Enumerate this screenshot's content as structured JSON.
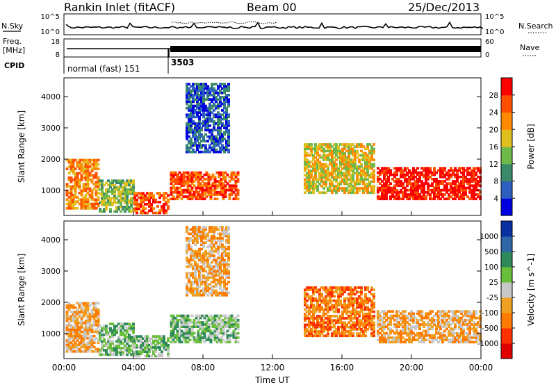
{
  "header": {
    "station": "Rankin Inlet (fitACF)",
    "beam": "Beam 00",
    "date": "25/Dec/2013"
  },
  "noise_panel": {
    "left_label": "N.Sky",
    "right_label": "N.Search",
    "left_ticks": [
      "10^5",
      "10^0"
    ],
    "right_ticks": [
      "10^5",
      "10^0"
    ]
  },
  "freq_panel": {
    "left_label_1": "Freq.",
    "left_label_2": "[MHz]",
    "right_label": "Nave",
    "left_ticks": [
      "18",
      "8"
    ],
    "right_ticks": [
      "60",
      "0"
    ]
  },
  "cpid": {
    "label": "CPID",
    "segments": [
      "normal (fast) 151",
      "3503"
    ]
  },
  "time_axis": {
    "label": "Time UT",
    "ticks": [
      "00:00",
      "04:00",
      "08:00",
      "12:00",
      "16:00",
      "20:00",
      "00:00"
    ]
  },
  "colors": {
    "power": [
      "#0000e0",
      "#2c5fbf",
      "#3a8a6a",
      "#6fb84a",
      "#e0c020",
      "#ff8a00",
      "#ff5000",
      "#ff0000"
    ],
    "velocity": [
      "#0a2fa0",
      "#2f66a8",
      "#2f8a5a",
      "#6abf3a",
      "#c8c8c8",
      "#f0a020",
      "#ff7a00",
      "#ff3000",
      "#e00000"
    ]
  },
  "chart_data": [
    {
      "type": "heatmap",
      "title": "",
      "xlabel": "",
      "ylabel": "Slant Range [km]",
      "xlim": [
        "00:00",
        "24:00"
      ],
      "ylim": [
        200,
        4600
      ],
      "y_ticks": [
        1000,
        2000,
        3000,
        4000
      ],
      "colorbar": {
        "label": "Power [dB]",
        "ticks": [
          "28",
          "24",
          "20",
          "16",
          "12",
          "8",
          "4"
        ],
        "range": [
          0,
          30
        ]
      },
      "regions": [
        {
          "t_start": 0.1,
          "t_end": 2.0,
          "r_low": 400,
          "r_high": 2000,
          "value": 22
        },
        {
          "t_start": 2.0,
          "t_end": 4.0,
          "r_low": 300,
          "r_high": 1300,
          "value": 14
        },
        {
          "t_start": 4.0,
          "t_end": 6.0,
          "r_low": 250,
          "r_high": 900,
          "value": 26
        },
        {
          "t_start": 6.1,
          "t_end": 10.0,
          "r_low": 700,
          "r_high": 1600,
          "value": 26
        },
        {
          "t_start": 7.0,
          "t_end": 9.5,
          "r_low": 2200,
          "r_high": 4400,
          "value": 6
        },
        {
          "t_start": 13.8,
          "t_end": 17.8,
          "r_low": 900,
          "r_high": 2500,
          "value": 16
        },
        {
          "t_start": 18.0,
          "t_end": 24.0,
          "r_low": 700,
          "r_high": 1700,
          "value": 28
        }
      ]
    },
    {
      "type": "heatmap",
      "title": "",
      "xlabel": "Time UT",
      "ylabel": "Slant Range [km]",
      "xlim": [
        "00:00",
        "24:00"
      ],
      "ylim": [
        200,
        4600
      ],
      "y_ticks": [
        1000,
        2000,
        3000,
        4000
      ],
      "colorbar": {
        "label": "Velocity [m s^-1]",
        "ticks": [
          "1000",
          "500",
          "100",
          "25",
          "-25",
          "-100",
          "-500",
          "-1000"
        ],
        "range": [
          -1000,
          1000
        ]
      },
      "regions": [
        {
          "t_start": 0.1,
          "t_end": 2.0,
          "r_low": 400,
          "r_high": 2000,
          "value": -150
        },
        {
          "t_start": 2.0,
          "t_end": 4.0,
          "r_low": 300,
          "r_high": 1300,
          "value": 200
        },
        {
          "t_start": 4.0,
          "t_end": 6.0,
          "r_low": 250,
          "r_high": 900,
          "value": 300
        },
        {
          "t_start": 6.1,
          "t_end": 10.0,
          "r_low": 700,
          "r_high": 1600,
          "value": 350
        },
        {
          "t_start": 7.0,
          "t_end": 9.5,
          "r_low": 2200,
          "r_high": 4400,
          "value": -200
        },
        {
          "t_start": 13.8,
          "t_end": 17.8,
          "r_low": 900,
          "r_high": 2500,
          "value": -450
        },
        {
          "t_start": 18.0,
          "t_end": 24.0,
          "r_low": 700,
          "r_high": 1700,
          "value": -250
        }
      ]
    }
  ]
}
